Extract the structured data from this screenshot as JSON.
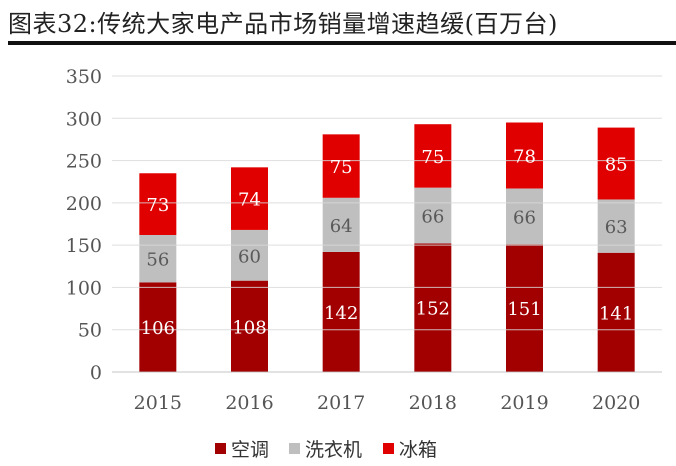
{
  "chart_data": {
    "type": "bar",
    "stacked": true,
    "title": "图表32:传统大家电产品市场销量增速趋缓(百万台)",
    "categories": [
      "2015",
      "2016",
      "2017",
      "2018",
      "2019",
      "2020"
    ],
    "series": [
      {
        "name": "空调",
        "color": "#A20000",
        "label_color": "#FFFFFF",
        "values": [
          106,
          108,
          142,
          152,
          151,
          141
        ]
      },
      {
        "name": "洗衣机",
        "color": "#BFBFBF",
        "label_color": "#595959",
        "values": [
          56,
          60,
          64,
          66,
          66,
          63
        ]
      },
      {
        "name": "冰箱",
        "color": "#E00000",
        "label_color": "#FFFFFF",
        "values": [
          73,
          74,
          75,
          75,
          78,
          85
        ]
      }
    ],
    "ylim": [
      0,
      350
    ],
    "yticks": [
      0,
      50,
      100,
      150,
      200,
      250,
      300,
      350
    ],
    "grid": true,
    "legend": "bottom",
    "xlabel": "",
    "ylabel": ""
  }
}
